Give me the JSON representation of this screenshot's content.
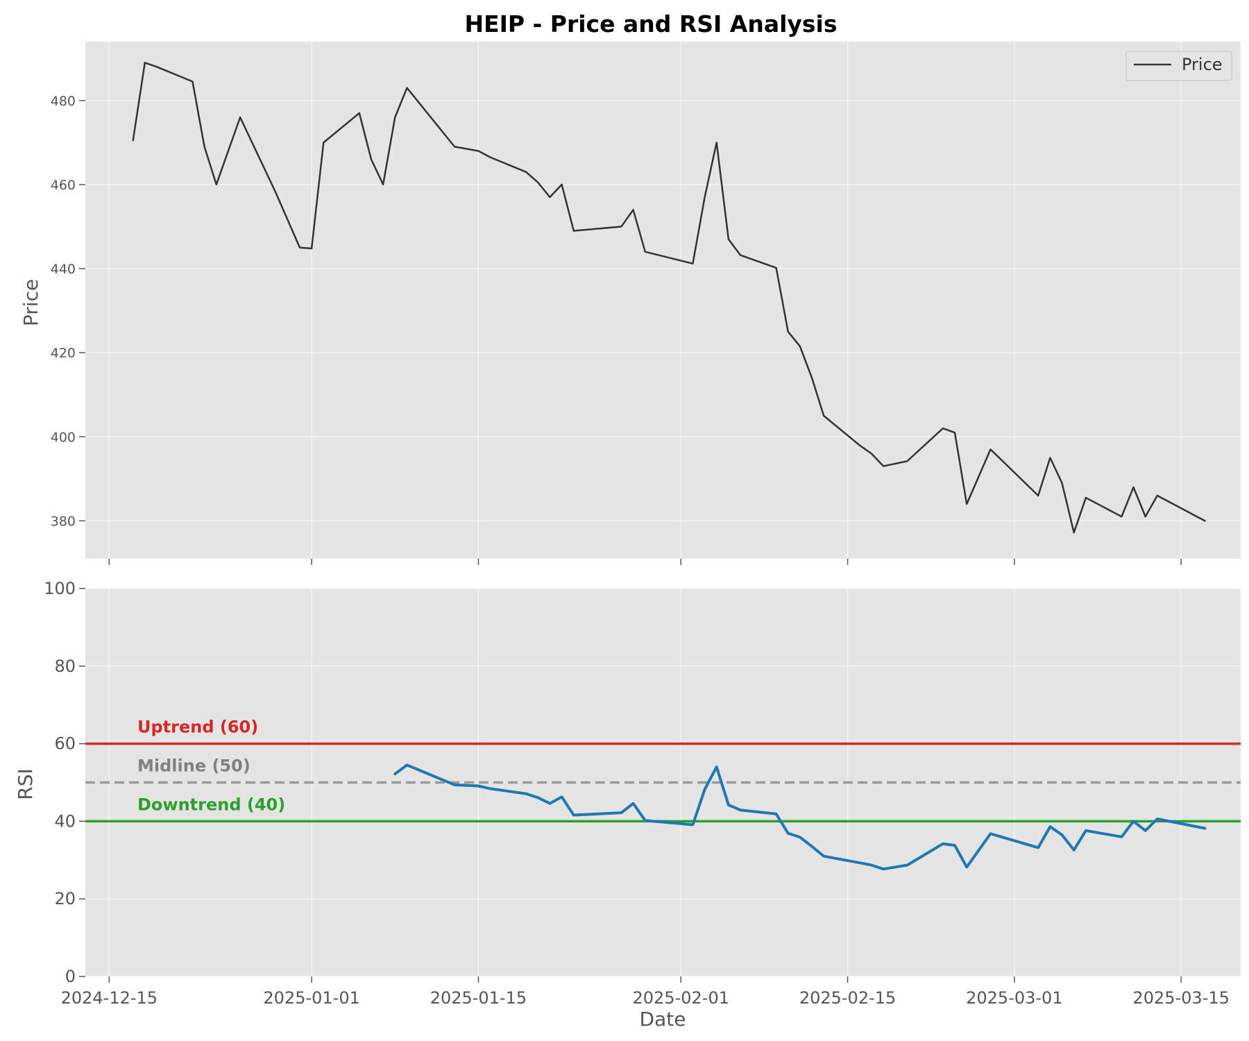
{
  "chart_data": {
    "title": "HEIP - Price and RSI Analysis",
    "colors": {
      "panel_bg": "#e5e5e5",
      "grid": "#ffffff",
      "price_line": "#333333",
      "rsi_line": "#1f77b4",
      "uptrend": "#d62728",
      "midline": "#999999",
      "downtrend": "#2ca02c"
    },
    "x_axis": {
      "label": "Date",
      "ticks": [
        "2024-12-15",
        "2025-01-01",
        "2025-01-15",
        "2025-02-01",
        "2025-02-15",
        "2025-03-01",
        "2025-03-15"
      ],
      "range": [
        "2024-12-13",
        "2025-03-20"
      ]
    },
    "price_panel": {
      "type": "line",
      "ylabel": "Price",
      "ylim": [
        371,
        494
      ],
      "yticks": [
        380,
        400,
        420,
        440,
        460,
        480
      ],
      "grid": true,
      "legend": {
        "position": "top-right",
        "entries": [
          "Price"
        ]
      },
      "series": [
        {
          "name": "Price",
          "points": [
            [
              "2024-12-17",
              470.5
            ],
            [
              "2024-12-18",
              489
            ],
            [
              "2024-12-19",
              488
            ],
            [
              "2024-12-22",
              484.5
            ],
            [
              "2024-12-23",
              469
            ],
            [
              "2024-12-24",
              460
            ],
            [
              "2024-12-26",
              476
            ],
            [
              "2024-12-29",
              458
            ],
            [
              "2024-12-31",
              445
            ],
            [
              "2025-01-01",
              444.8
            ],
            [
              "2025-01-02",
              470
            ],
            [
              "2025-01-05",
              477
            ],
            [
              "2025-01-06",
              466
            ],
            [
              "2025-01-07",
              460
            ],
            [
              "2025-01-08",
              476
            ],
            [
              "2025-01-09",
              483
            ],
            [
              "2025-01-13",
              469
            ],
            [
              "2025-01-15",
              468
            ],
            [
              "2025-01-16",
              466.5
            ],
            [
              "2025-01-19",
              463
            ],
            [
              "2025-01-20",
              460.5
            ],
            [
              "2025-01-21",
              457
            ],
            [
              "2025-01-22",
              460
            ],
            [
              "2025-01-23",
              449
            ],
            [
              "2025-01-27",
              450
            ],
            [
              "2025-01-28",
              454
            ],
            [
              "2025-01-29",
              444
            ],
            [
              "2025-02-02",
              441.2
            ],
            [
              "2025-02-03",
              457
            ],
            [
              "2025-02-04",
              470
            ],
            [
              "2025-02-05",
              447
            ],
            [
              "2025-02-06",
              443.2
            ],
            [
              "2025-02-09",
              440.2
            ],
            [
              "2025-02-10",
              425
            ],
            [
              "2025-02-11",
              421.5
            ],
            [
              "2025-02-12",
              414
            ],
            [
              "2025-02-13",
              405
            ],
            [
              "2025-02-16",
              398
            ],
            [
              "2025-02-17",
              396
            ],
            [
              "2025-02-18",
              393
            ],
            [
              "2025-02-20",
              394.2
            ],
            [
              "2025-02-23",
              402
            ],
            [
              "2025-02-24",
              401
            ],
            [
              "2025-02-25",
              384
            ],
            [
              "2025-02-27",
              397
            ],
            [
              "2025-03-03",
              386
            ],
            [
              "2025-03-04",
              395
            ],
            [
              "2025-03-05",
              389
            ],
            [
              "2025-03-06",
              377.2
            ],
            [
              "2025-03-07",
              385.5
            ],
            [
              "2025-03-10",
              381
            ],
            [
              "2025-03-11",
              388
            ],
            [
              "2025-03-12",
              381
            ],
            [
              "2025-03-13",
              386
            ],
            [
              "2025-03-17",
              380
            ]
          ]
        }
      ]
    },
    "rsi_panel": {
      "type": "line",
      "ylabel": "RSI",
      "ylim": [
        0,
        100
      ],
      "yticks": [
        0,
        20,
        40,
        60,
        80,
        100
      ],
      "grid": true,
      "reference_lines": [
        {
          "label": "Uptrend (60)",
          "value": 60,
          "style": "solid",
          "color": "#d62728"
        },
        {
          "label": "Midline (50)",
          "value": 50,
          "style": "dashed",
          "color": "#999999"
        },
        {
          "label": "Downtrend (40)",
          "value": 40,
          "style": "solid",
          "color": "#2ca02c"
        }
      ],
      "series": [
        {
          "name": "RSI",
          "points": [
            [
              "2025-01-08",
              52.2
            ],
            [
              "2025-01-09",
              54.5
            ],
            [
              "2025-01-13",
              49.4
            ],
            [
              "2025-01-15",
              49.1
            ],
            [
              "2025-01-16",
              48.4
            ],
            [
              "2025-01-19",
              47.1
            ],
            [
              "2025-01-20",
              46.1
            ],
            [
              "2025-01-21",
              44.6
            ],
            [
              "2025-01-22",
              46.3
            ],
            [
              "2025-01-23",
              41.6
            ],
            [
              "2025-01-27",
              42.2
            ],
            [
              "2025-01-28",
              44.6
            ],
            [
              "2025-01-29",
              40.2
            ],
            [
              "2025-02-02",
              39.1
            ],
            [
              "2025-02-03",
              48.2
            ],
            [
              "2025-02-04",
              54.0
            ],
            [
              "2025-02-05",
              44.2
            ],
            [
              "2025-02-06",
              42.9
            ],
            [
              "2025-02-09",
              41.9
            ],
            [
              "2025-02-10",
              36.9
            ],
            [
              "2025-02-11",
              35.9
            ],
            [
              "2025-02-12",
              33.5
            ],
            [
              "2025-02-13",
              31.0
            ],
            [
              "2025-02-16",
              29.3
            ],
            [
              "2025-02-17",
              28.7
            ],
            [
              "2025-02-18",
              27.7
            ],
            [
              "2025-02-20",
              28.7
            ],
            [
              "2025-02-23",
              34.2
            ],
            [
              "2025-02-24",
              33.8
            ],
            [
              "2025-02-25",
              28.2
            ],
            [
              "2025-02-27",
              36.8
            ],
            [
              "2025-03-03",
              33.2
            ],
            [
              "2025-03-04",
              38.6
            ],
            [
              "2025-03-05",
              36.5
            ],
            [
              "2025-03-06",
              32.6
            ],
            [
              "2025-03-07",
              37.6
            ],
            [
              "2025-03-10",
              36.0
            ],
            [
              "2025-03-11",
              40.0
            ],
            [
              "2025-03-12",
              37.6
            ],
            [
              "2025-03-13",
              40.6
            ],
            [
              "2025-03-17",
              38.2
            ]
          ]
        }
      ]
    }
  }
}
